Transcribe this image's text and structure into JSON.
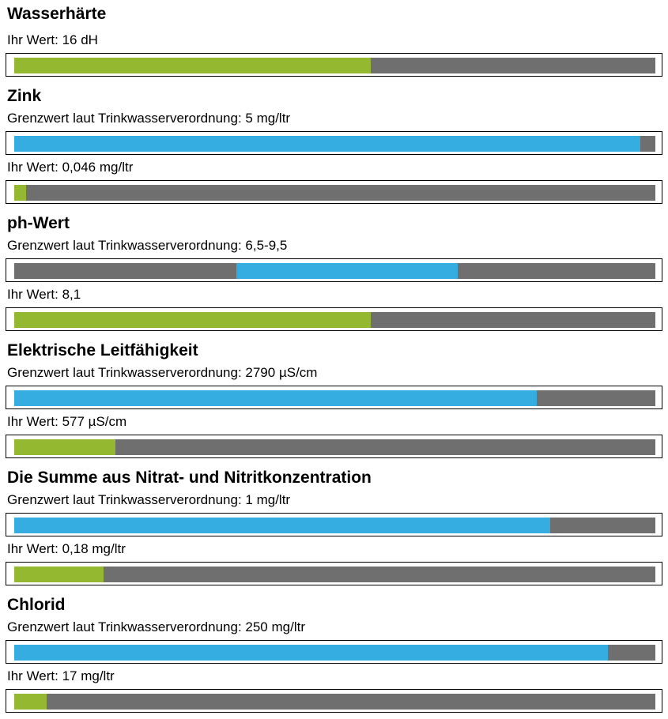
{
  "colors": {
    "value_bar": "#95b831",
    "limit_bar": "#36ade0",
    "track": "#6f6f6f"
  },
  "sections": [
    {
      "title": "Wasserhärte",
      "value_label": "Ihr Wert: 16 dH",
      "value_fill": 0.556
    },
    {
      "title": "Zink",
      "limit_label": "Grenzwert laut Trinkwasserverordnung: 5 mg/ltr",
      "limit_fill": [
        0,
        0.976
      ],
      "value_label": "Ihr Wert: 0,046 mg/ltr",
      "value_fill": 0.018
    },
    {
      "title": "ph-Wert",
      "limit_label": "Grenzwert laut Trinkwasserverordnung: 6,5-9,5",
      "limit_fill": [
        0.346,
        0.692
      ],
      "value_label": "Ihr Wert: 8,1",
      "value_fill": 0.556
    },
    {
      "title": "Elektrische Leitfähigkeit",
      "limit_label": "Grenzwert laut Trinkwasserverordnung: 2790 µS/cm",
      "limit_fill": [
        0,
        0.815
      ],
      "value_label": "Ihr Wert: 577 µS/cm",
      "value_fill": 0.158
    },
    {
      "title": "Die Summe aus Nitrat- und Nitritkonzentration",
      "limit_label": "Grenzwert laut Trinkwasserverordnung: 1 mg/ltr",
      "limit_fill": [
        0,
        0.836
      ],
      "value_label": "Ihr Wert: 0,18 mg/ltr",
      "value_fill": 0.139
    },
    {
      "title": "Chlorid",
      "limit_label": "Grenzwert laut Trinkwasserverordnung: 250 mg/ltr",
      "limit_fill": [
        0,
        0.926
      ],
      "value_label": "Ihr Wert: 17 mg/ltr",
      "value_fill": 0.05
    }
  ]
}
